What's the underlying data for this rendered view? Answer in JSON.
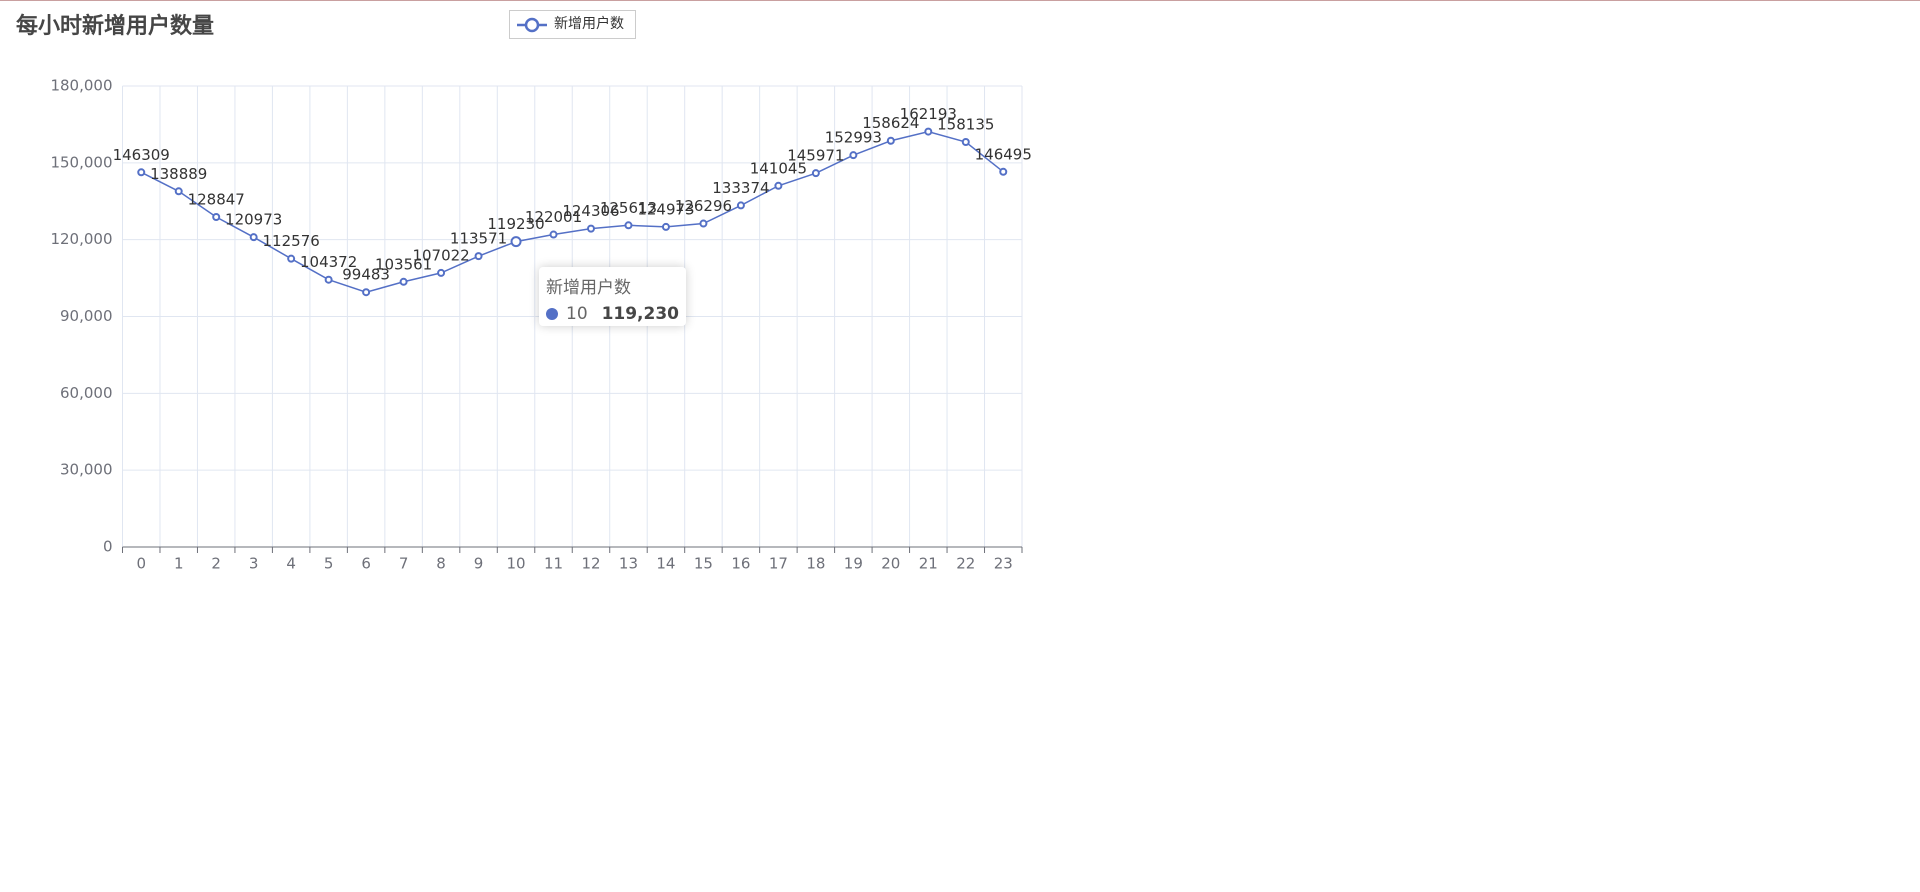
{
  "chart_data": {
    "type": "line",
    "title": "每小时新增用户数量",
    "categories": [
      "0",
      "1",
      "2",
      "3",
      "4",
      "5",
      "6",
      "7",
      "8",
      "9",
      "10",
      "11",
      "12",
      "13",
      "14",
      "15",
      "16",
      "17",
      "18",
      "19",
      "20",
      "21",
      "22",
      "23"
    ],
    "series": [
      {
        "name": "新增用户数",
        "color": "#5470c6",
        "values": [
          146309,
          138889,
          128847,
          120973,
          112576,
          104372,
          99483,
          103561,
          107022,
          113571,
          119230,
          122001,
          124306,
          125613,
          124973,
          126296,
          133374,
          141045,
          145971,
          152993,
          158624,
          162193,
          158135,
          146495
        ]
      }
    ],
    "ylim": [
      0,
      180000
    ],
    "yticks": [
      0,
      {
        "value": 30000,
        "label": "30,000"
      },
      {
        "value": 60000,
        "label": "60,000"
      },
      {
        "value": 90000,
        "label": "90,000"
      },
      {
        "value": 120000,
        "label": "120,000"
      },
      {
        "value": 150000,
        "label": "150,000"
      },
      {
        "value": 180000,
        "label": "180,000"
      }
    ],
    "grid": true,
    "tooltip": {
      "series": "新增用户数",
      "category": "10",
      "value_label": "119,230"
    }
  }
}
